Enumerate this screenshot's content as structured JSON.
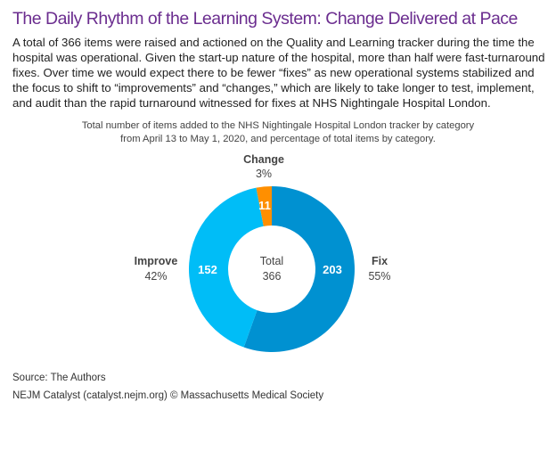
{
  "title": "The Daily Rhythm of the Learning System: Change Delivered at Pace",
  "intro": "A total of 366 items were raised and actioned on the Quality and Learning tracker during the time the hospital was operational. Given the start-up nature of the hospital, more than half were fast-turnaround fixes. Over time we would expect there to be fewer “fixes” as new operational systems stabilized and the focus to shift to “improvements” and “changes,” which are likely to take longer to test, implement, and audit than the rapid turnaround witnessed for fixes at NHS Nightingale Hospital London.",
  "chart_data": {
    "type": "pie",
    "subtype": "donut",
    "title_line1": "Total number of items added to the NHS Nightingale Hospital London tracker by category",
    "title_line2": "from April 13 to May 1, 2020, and percentage of total items by category.",
    "center_label": "Total",
    "center_value": "366",
    "slices": [
      {
        "name": "Fix",
        "value": 203,
        "value_label": "203",
        "percent": "55%",
        "color": "#0091d1"
      },
      {
        "name": "Improve",
        "value": 152,
        "value_label": "152",
        "percent": "42%",
        "color": "#00bdf7"
      },
      {
        "name": "Change",
        "value": 11,
        "value_label": "11",
        "percent": "3%",
        "color": "#ff8f00"
      }
    ]
  },
  "source": "Source: The Authors",
  "footer": "NEJM Catalyst (catalyst.nejm.org) © Massachusetts Medical Society"
}
